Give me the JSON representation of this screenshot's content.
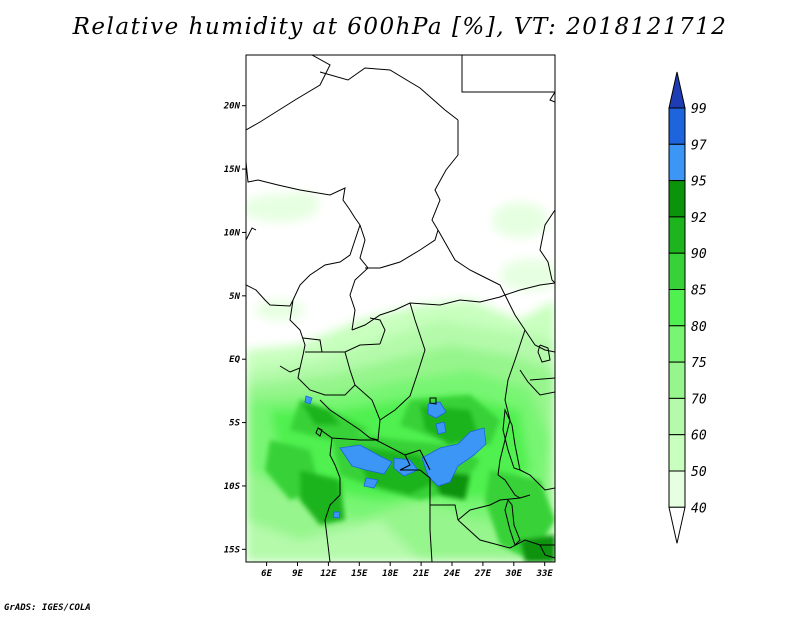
{
  "title": "Relative humidity at 600hPa [%], VT: 2018121712",
  "credit": "GrADS: IGES/COLA",
  "map": {
    "lon_range": [
      4,
      34
    ],
    "lat_range": [
      -16,
      24
    ],
    "lat_ticks": [
      {
        "value": 20,
        "label": "20N"
      },
      {
        "value": 15,
        "label": "15N"
      },
      {
        "value": 10,
        "label": "10N"
      },
      {
        "value": 5,
        "label": "5N"
      },
      {
        "value": 0,
        "label": "EQ"
      },
      {
        "value": -5,
        "label": "5S"
      },
      {
        "value": -10,
        "label": "10S"
      },
      {
        "value": -15,
        "label": "15S"
      }
    ],
    "lon_ticks": [
      {
        "value": 6,
        "label": "6E"
      },
      {
        "value": 9,
        "label": "9E"
      },
      {
        "value": 12,
        "label": "12E"
      },
      {
        "value": 15,
        "label": "15E"
      },
      {
        "value": 18,
        "label": "18E"
      },
      {
        "value": 21,
        "label": "21E"
      },
      {
        "value": 24,
        "label": "24E"
      },
      {
        "value": 27,
        "label": "27E"
      },
      {
        "value": 30,
        "label": "30E"
      },
      {
        "value": 33,
        "label": "33E"
      }
    ]
  },
  "colorbar": {
    "levels": [
      {
        "label": "99",
        "color": "#1e64dc"
      },
      {
        "label": "97",
        "color": "#3c96f5"
      },
      {
        "label": "95",
        "color": "#0c930c"
      },
      {
        "label": "92",
        "color": "#1eb41e"
      },
      {
        "label": "90",
        "color": "#37d237"
      },
      {
        "label": "85",
        "color": "#50f050"
      },
      {
        "label": "80",
        "color": "#78f573"
      },
      {
        "label": "75",
        "color": "#96f58c"
      },
      {
        "label": "70",
        "color": "#b4faaa"
      },
      {
        "label": "60",
        "color": "#c8ffbe"
      },
      {
        "label": "50",
        "color": "#e6ffe1"
      },
      {
        "label": "40",
        "color": "#ffffff"
      }
    ],
    "top_color": "#1e3cb4"
  }
}
